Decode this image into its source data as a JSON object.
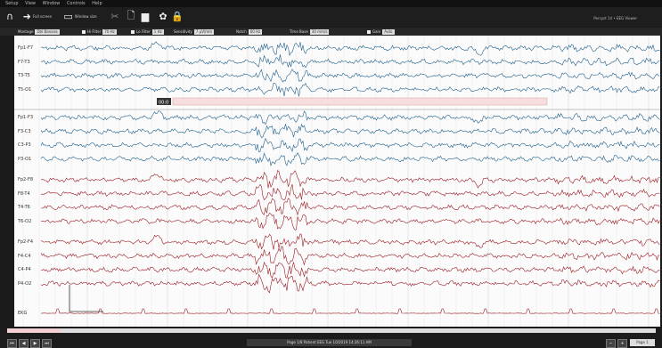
{
  "menu": [
    "Setup",
    "View",
    "Window",
    "Controls",
    "Help"
  ],
  "toolbar": {
    "montage_label": "Full screen",
    "view_label": "Window size",
    "version_text": "Persyst 14 • EEG Viewer"
  },
  "params": [
    {
      "label": "Montage",
      "value": "Dbl Banana"
    },
    {
      "label": "Hi Filter",
      "value": "70 Hz"
    },
    {
      "label": "Lo Filter",
      "value": "1 Hz"
    },
    {
      "label": "Sensitivity",
      "value": "7 µV/mm"
    },
    {
      "label": "Notch",
      "value": "60 Hz"
    },
    {
      "label": "Time Base",
      "value": "30 mm/s"
    },
    {
      "label": "Gain",
      "value": "Auto"
    }
  ],
  "channels": [
    {
      "name": "Fp1-F7",
      "color": "#1f5f8b"
    },
    {
      "name": "F7-T3",
      "color": "#1f5f8b"
    },
    {
      "name": "T3-T5",
      "color": "#1f5f8b"
    },
    {
      "name": "T5-O1",
      "color": "#1f5f8b"
    },
    {
      "name": "Fp1-F3",
      "color": "#1f5f8b"
    },
    {
      "name": "F3-C3",
      "color": "#1f5f8b"
    },
    {
      "name": "C3-P3",
      "color": "#1f5f8b"
    },
    {
      "name": "P3-O1",
      "color": "#1f5f8b"
    },
    {
      "name": "Fp2-F8",
      "color": "#9b1b22"
    },
    {
      "name": "F8-T4",
      "color": "#9b1b22"
    },
    {
      "name": "T4-T6",
      "color": "#9b1b22"
    },
    {
      "name": "T6-O2",
      "color": "#9b1b22"
    },
    {
      "name": "Fp2-F4",
      "color": "#9b1b22"
    },
    {
      "name": "F4-C4",
      "color": "#9b1b22"
    },
    {
      "name": "C4-P4",
      "color": "#9b1b22"
    },
    {
      "name": "P4-O2",
      "color": "#9b1b22"
    },
    {
      "name": "EKG",
      "color": "#9b1b22"
    }
  ],
  "event_marker": "00:0",
  "status_text": "Page 1/8   Patient EEG   Tue 10/2019 14:26:11 AM",
  "page_box": "Page 1"
}
